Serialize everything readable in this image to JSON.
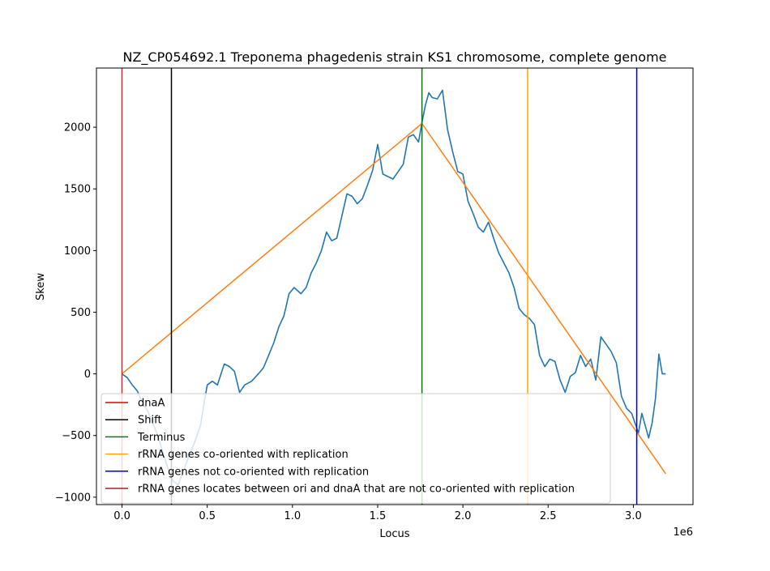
{
  "chart_data": {
    "type": "line",
    "title": "NZ_CP054692.1 Treponema phagedenis strain KS1 chromosome, complete genome",
    "xlabel": "Locus",
    "ylabel": "Skew",
    "x_offset_label": "1e6",
    "xlim": [
      -150000,
      3350000
    ],
    "ylim": [
      -1060,
      2480
    ],
    "x_ticks": [
      {
        "value": 0,
        "label": "0.0"
      },
      {
        "value": 500000,
        "label": "0.5"
      },
      {
        "value": 1000000,
        "label": "1.0"
      },
      {
        "value": 1500000,
        "label": "1.5"
      },
      {
        "value": 2000000,
        "label": "2.0"
      },
      {
        "value": 2500000,
        "label": "2.5"
      },
      {
        "value": 3000000,
        "label": "3.0"
      }
    ],
    "y_ticks": [
      {
        "value": -1000,
        "label": "−1000"
      },
      {
        "value": -500,
        "label": "−500"
      },
      {
        "value": 0,
        "label": "0"
      },
      {
        "value": 500,
        "label": "500"
      },
      {
        "value": 1000,
        "label": "1000"
      },
      {
        "value": 1500,
        "label": "1500"
      },
      {
        "value": 2000,
        "label": "2000"
      }
    ],
    "grid": false,
    "legend_position": "lower-left",
    "series": [
      {
        "kind": "skew",
        "color": "#1f77b4",
        "x": [
          0,
          30000,
          60000,
          90000,
          120000,
          150000,
          180000,
          210000,
          240000,
          270000,
          300000,
          330000,
          360000,
          400000,
          430000,
          460000,
          480000,
          500000,
          530000,
          560000,
          600000,
          630000,
          660000,
          690000,
          720000,
          760000,
          800000,
          830000,
          860000,
          890000,
          920000,
          950000,
          980000,
          1010000,
          1050000,
          1080000,
          1110000,
          1140000,
          1170000,
          1200000,
          1230000,
          1260000,
          1290000,
          1320000,
          1350000,
          1380000,
          1410000,
          1440000,
          1470000,
          1500000,
          1530000,
          1560000,
          1590000,
          1620000,
          1650000,
          1680000,
          1710000,
          1740000,
          1760000,
          1780000,
          1800000,
          1820000,
          1850000,
          1880000,
          1910000,
          1940000,
          1970000,
          2000000,
          2030000,
          2060000,
          2090000,
          2120000,
          2150000,
          2180000,
          2210000,
          2240000,
          2270000,
          2300000,
          2330000,
          2360000,
          2390000,
          2420000,
          2450000,
          2480000,
          2510000,
          2540000,
          2570000,
          2600000,
          2630000,
          2660000,
          2690000,
          2720000,
          2750000,
          2780000,
          2810000,
          2840000,
          2870000,
          2900000,
          2930000,
          2960000,
          2990000,
          3010000,
          3030000,
          3050000,
          3070000,
          3090000,
          3110000,
          3130000,
          3150000,
          3170000,
          3190000
        ],
        "y": [
          0,
          -30,
          -90,
          -140,
          -230,
          -300,
          -400,
          -500,
          -640,
          -770,
          -870,
          -900,
          -790,
          -640,
          -540,
          -420,
          -250,
          -90,
          -60,
          -90,
          80,
          60,
          20,
          -150,
          -90,
          -60,
          0,
          50,
          150,
          250,
          380,
          470,
          650,
          700,
          650,
          700,
          820,
          900,
          1000,
          1150,
          1080,
          1100,
          1280,
          1460,
          1440,
          1380,
          1420,
          1530,
          1650,
          1860,
          1620,
          1600,
          1580,
          1640,
          1700,
          1920,
          1940,
          1880,
          2040,
          2180,
          2280,
          2240,
          2230,
          2300,
          1980,
          1800,
          1640,
          1620,
          1400,
          1300,
          1190,
          1150,
          1230,
          1100,
          980,
          900,
          820,
          700,
          530,
          480,
          450,
          400,
          150,
          60,
          120,
          100,
          -50,
          -150,
          -20,
          10,
          150,
          60,
          120,
          -50,
          300,
          240,
          180,
          90,
          -180,
          -280,
          -320,
          -400,
          -480,
          -320,
          -420,
          -520,
          -400,
          -200,
          160,
          0,
          0
        ]
      },
      {
        "kind": "fit",
        "color": "#ff7f0e",
        "x": [
          0,
          1760000,
          3190000
        ],
        "y": [
          0,
          2030,
          -810
        ]
      }
    ],
    "markers": [
      {
        "name": "dnaA",
        "x": 0,
        "color": "#d62728"
      },
      {
        "name": "Shift",
        "x": 290000,
        "color": "#000000"
      },
      {
        "name": "Terminus",
        "x": 1760000,
        "color": "#008000"
      },
      {
        "name": "rRNA genes co-oriented with replication",
        "x": 2380000,
        "color": "#ffa500"
      },
      {
        "name": "rRNA genes not co-oriented with replication",
        "x": 3020000,
        "color": "#0000cd"
      }
    ],
    "legend": [
      {
        "label": "dnaA",
        "color": "#e00000"
      },
      {
        "label": "Shift",
        "color": "#000000"
      },
      {
        "label": "Terminus",
        "color": "#008000"
      },
      {
        "label": "rRNA genes co-oriented with replication",
        "color": "#ffa500"
      },
      {
        "label": "rRNA genes not co-oriented with replication",
        "color": "#0000cd"
      },
      {
        "label": "rRNA genes locates between ori and dnaA that are not co-oriented with replication",
        "color": "#b22222"
      }
    ]
  }
}
